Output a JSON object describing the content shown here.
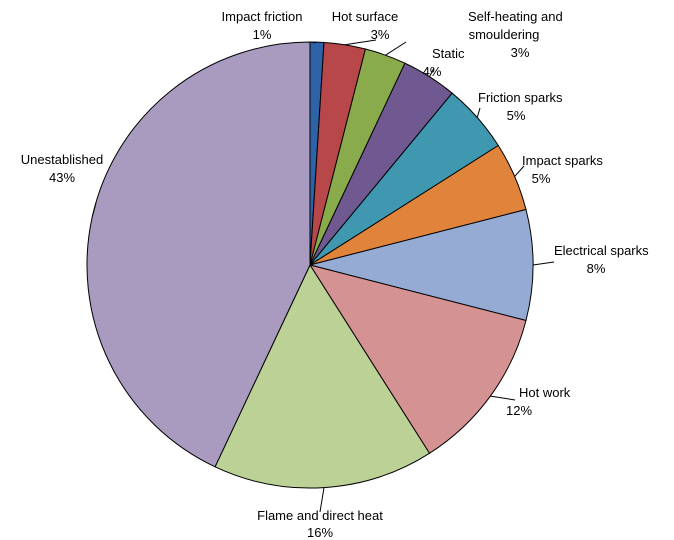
{
  "chart_data": {
    "type": "pie",
    "title": "",
    "unit": "%",
    "slices": [
      {
        "label": "Impact friction",
        "value": 1,
        "value_label": "1%",
        "color": "#2e63a8"
      },
      {
        "label": "Hot surface",
        "value": 3,
        "value_label": "3%",
        "color": "#b8474a"
      },
      {
        "label": "Self-heating and smouldering",
        "value": 3,
        "value_label": "3%",
        "color": "#8aab4c"
      },
      {
        "label": "Static",
        "value": 4,
        "value_label": "4%",
        "color": "#705890"
      },
      {
        "label": "Friction sparks",
        "value": 5,
        "value_label": "5%",
        "color": "#3f97b0"
      },
      {
        "label": "Impact sparks",
        "value": 5,
        "value_label": "5%",
        "color": "#e0843c"
      },
      {
        "label": "Electrical sparks",
        "value": 8,
        "value_label": "8%",
        "color": "#95abd4"
      },
      {
        "label": "Hot work",
        "value": 12,
        "value_label": "12%",
        "color": "#d59292"
      },
      {
        "label": "Flame and direct heat",
        "value": 16,
        "value_label": "16%",
        "color": "#bcd196"
      },
      {
        "label": "Unestablished",
        "value": 43,
        "value_label": "43%",
        "color": "#a99bc0"
      }
    ],
    "start_angle_deg": 0,
    "direction": "clockwise",
    "legend": "none"
  }
}
